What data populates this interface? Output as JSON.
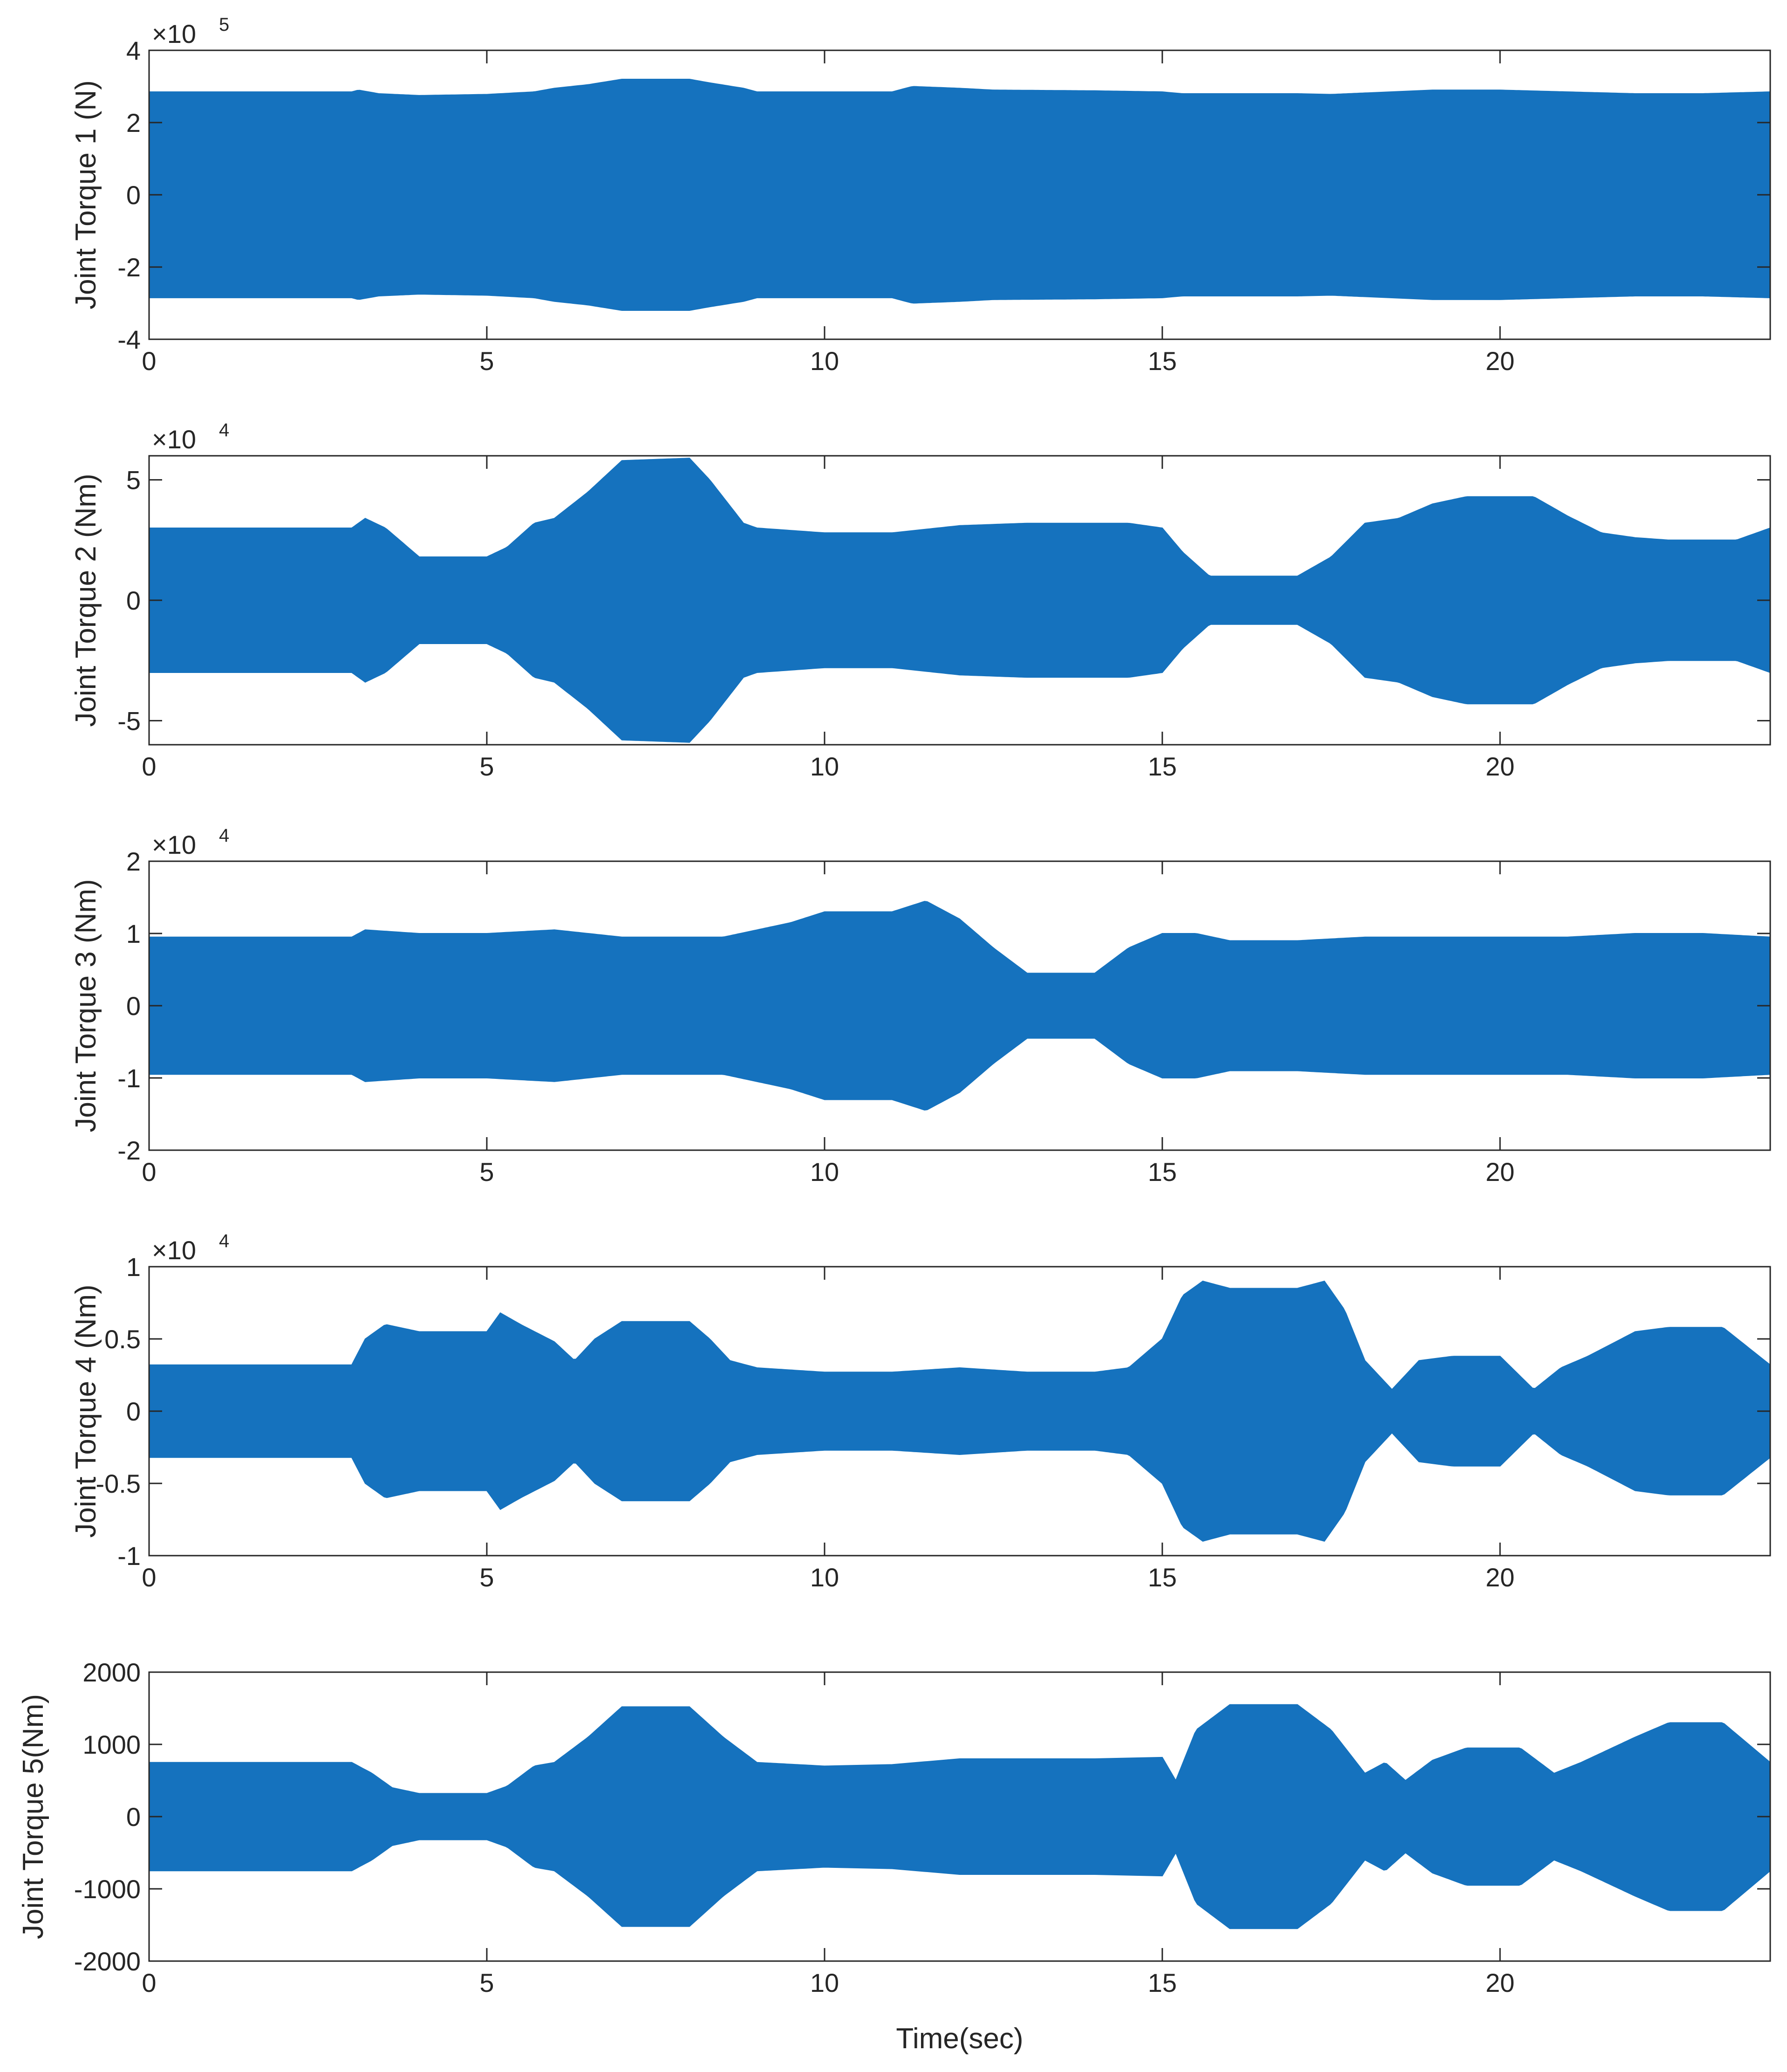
{
  "figure": {
    "x_axis_label": "Time(sec)",
    "line_color": "#1572BE",
    "axis_color": "#262626"
  },
  "chart_data": [
    {
      "type": "area",
      "ylabel": "Joint Torque 1 (N)",
      "exponent_label": "×10",
      "exponent_power": "5",
      "xlim": [
        0,
        24
      ],
      "ylim": [
        -4,
        4
      ],
      "xticks": [
        0,
        5,
        10,
        15,
        20
      ],
      "yticks": [
        -4,
        -2,
        0,
        2,
        4
      ],
      "series": [
        {
          "envelope_points": [
            [
              0,
              2.85
            ],
            [
              3,
              2.85
            ],
            [
              3.1,
              2.9
            ],
            [
              3.4,
              2.8
            ],
            [
              4,
              2.75
            ],
            [
              5,
              2.78
            ],
            [
              5.7,
              2.85
            ],
            [
              6,
              2.95
            ],
            [
              6.5,
              3.05
            ],
            [
              7,
              3.2
            ],
            [
              8,
              3.2
            ],
            [
              8.3,
              3.1
            ],
            [
              8.8,
              2.95
            ],
            [
              9,
              2.85
            ],
            [
              10,
              2.85
            ],
            [
              11,
              2.85
            ],
            [
              11.3,
              3.0
            ],
            [
              12,
              2.95
            ],
            [
              12.5,
              2.9
            ],
            [
              14,
              2.88
            ],
            [
              15,
              2.85
            ],
            [
              15.3,
              2.8
            ],
            [
              16,
              2.8
            ],
            [
              17,
              2.8
            ],
            [
              17.5,
              2.78
            ],
            [
              18,
              2.82
            ],
            [
              19,
              2.9
            ],
            [
              20,
              2.9
            ],
            [
              21,
              2.85
            ],
            [
              22,
              2.8
            ],
            [
              23,
              2.8
            ],
            [
              24,
              2.85
            ]
          ]
        }
      ]
    },
    {
      "type": "area",
      "ylabel": "Joint Torque 2 (Nm)",
      "exponent_label": "×10",
      "exponent_power": "4",
      "xlim": [
        0,
        24
      ],
      "ylim": [
        -6,
        6
      ],
      "xticks": [
        0,
        5,
        10,
        15,
        20
      ],
      "yticks": [
        -5,
        0,
        5
      ],
      "series": [
        {
          "envelope_points": [
            [
              0,
              3.0
            ],
            [
              3,
              3.0
            ],
            [
              3.2,
              3.4
            ],
            [
              3.5,
              3.0
            ],
            [
              4,
              1.8
            ],
            [
              5,
              1.8
            ],
            [
              5.3,
              2.2
            ],
            [
              5.7,
              3.2
            ],
            [
              6,
              3.4
            ],
            [
              6.5,
              4.5
            ],
            [
              7,
              5.8
            ],
            [
              8,
              5.9
            ],
            [
              8.3,
              5.0
            ],
            [
              8.8,
              3.2
            ],
            [
              9,
              3.0
            ],
            [
              10,
              2.8
            ],
            [
              11,
              2.8
            ],
            [
              12,
              3.1
            ],
            [
              13,
              3.2
            ],
            [
              14.5,
              3.2
            ],
            [
              15,
              3.0
            ],
            [
              15.3,
              2.0
            ],
            [
              15.7,
              1.0
            ],
            [
              17,
              1.0
            ],
            [
              17.5,
              1.8
            ],
            [
              18,
              3.2
            ],
            [
              18.5,
              3.4
            ],
            [
              19,
              4.0
            ],
            [
              19.5,
              4.3
            ],
            [
              20.5,
              4.3
            ],
            [
              21,
              3.5
            ],
            [
              21.5,
              2.8
            ],
            [
              22,
              2.6
            ],
            [
              22.5,
              2.5
            ],
            [
              23.5,
              2.5
            ],
            [
              24,
              3.0
            ]
          ]
        }
      ]
    },
    {
      "type": "area",
      "ylabel": "Joint Torque 3 (Nm)",
      "exponent_label": "×10",
      "exponent_power": "4",
      "xlim": [
        0,
        24
      ],
      "ylim": [
        -2,
        2
      ],
      "xticks": [
        0,
        5,
        10,
        15,
        20
      ],
      "yticks": [
        -2,
        -1,
        0,
        1,
        2
      ],
      "series": [
        {
          "envelope_points": [
            [
              0,
              0.95
            ],
            [
              3,
              0.95
            ],
            [
              3.2,
              1.05
            ],
            [
              4,
              1.0
            ],
            [
              5,
              1.0
            ],
            [
              6,
              1.05
            ],
            [
              7,
              0.95
            ],
            [
              8.5,
              0.95
            ],
            [
              9,
              1.05
            ],
            [
              9.5,
              1.15
            ],
            [
              10,
              1.3
            ],
            [
              11,
              1.3
            ],
            [
              11.5,
              1.45
            ],
            [
              12,
              1.2
            ],
            [
              12.5,
              0.8
            ],
            [
              13,
              0.45
            ],
            [
              14,
              0.45
            ],
            [
              14.5,
              0.8
            ],
            [
              15,
              1.0
            ],
            [
              15.5,
              1.0
            ],
            [
              16,
              0.9
            ],
            [
              17,
              0.9
            ],
            [
              18,
              0.95
            ],
            [
              19,
              0.95
            ],
            [
              21,
              0.95
            ],
            [
              22,
              1.0
            ],
            [
              23,
              1.0
            ],
            [
              24,
              0.95
            ]
          ]
        }
      ]
    },
    {
      "type": "area",
      "ylabel": "Joint Torque 4 (Nm)",
      "exponent_label": "×10",
      "exponent_power": "4",
      "xlim": [
        0,
        24
      ],
      "ylim": [
        -1,
        1
      ],
      "xticks": [
        0,
        5,
        10,
        15,
        20
      ],
      "yticks": [
        -1,
        -0.5,
        0,
        0.5,
        1
      ],
      "series": [
        {
          "envelope_points": [
            [
              0,
              0.32
            ],
            [
              3,
              0.32
            ],
            [
              3.2,
              0.5
            ],
            [
              3.5,
              0.6
            ],
            [
              4,
              0.55
            ],
            [
              5,
              0.55
            ],
            [
              5.2,
              0.68
            ],
            [
              5.5,
              0.6
            ],
            [
              6,
              0.48
            ],
            [
              6.3,
              0.35
            ],
            [
              6.6,
              0.5
            ],
            [
              7,
              0.62
            ],
            [
              8,
              0.62
            ],
            [
              8.3,
              0.5
            ],
            [
              8.6,
              0.35
            ],
            [
              9,
              0.3
            ],
            [
              10,
              0.27
            ],
            [
              11,
              0.27
            ],
            [
              12,
              0.3
            ],
            [
              13,
              0.27
            ],
            [
              14,
              0.27
            ],
            [
              14.5,
              0.3
            ],
            [
              15,
              0.5
            ],
            [
              15.3,
              0.8
            ],
            [
              15.6,
              0.9
            ],
            [
              16,
              0.85
            ],
            [
              17,
              0.85
            ],
            [
              17.4,
              0.9
            ],
            [
              17.7,
              0.7
            ],
            [
              18,
              0.35
            ],
            [
              18.4,
              0.15
            ],
            [
              18.8,
              0.35
            ],
            [
              19.3,
              0.38
            ],
            [
              20,
              0.38
            ],
            [
              20.5,
              0.15
            ],
            [
              20.9,
              0.3
            ],
            [
              21.3,
              0.38
            ],
            [
              22,
              0.55
            ],
            [
              22.5,
              0.58
            ],
            [
              23.3,
              0.58
            ],
            [
              24,
              0.32
            ]
          ]
        }
      ]
    },
    {
      "type": "area",
      "ylabel": "Joint Torque 5(Nm)",
      "exponent_label": "",
      "exponent_power": "",
      "xlim": [
        0,
        24
      ],
      "ylim": [
        -2000,
        2000
      ],
      "xticks": [
        0,
        5,
        10,
        15,
        20
      ],
      "yticks": [
        -2000,
        -1000,
        0,
        1000,
        2000
      ],
      "series": [
        {
          "envelope_points": [
            [
              0,
              750
            ],
            [
              3,
              750
            ],
            [
              3.3,
              600
            ],
            [
              3.6,
              400
            ],
            [
              4,
              320
            ],
            [
              5,
              320
            ],
            [
              5.3,
              420
            ],
            [
              5.7,
              700
            ],
            [
              6,
              750
            ],
            [
              6.5,
              1100
            ],
            [
              7,
              1520
            ],
            [
              8,
              1520
            ],
            [
              8.5,
              1100
            ],
            [
              9,
              750
            ],
            [
              10,
              700
            ],
            [
              11,
              720
            ],
            [
              12,
              800
            ],
            [
              13,
              800
            ],
            [
              14,
              800
            ],
            [
              15,
              820
            ],
            [
              15.2,
              500
            ],
            [
              15.5,
              1200
            ],
            [
              16,
              1550
            ],
            [
              17,
              1550
            ],
            [
              17.5,
              1200
            ],
            [
              18,
              600
            ],
            [
              18.3,
              750
            ],
            [
              18.6,
              500
            ],
            [
              19,
              780
            ],
            [
              19.5,
              950
            ],
            [
              20.3,
              950
            ],
            [
              20.8,
              600
            ],
            [
              21.2,
              750
            ],
            [
              22,
              1100
            ],
            [
              22.5,
              1300
            ],
            [
              23.3,
              1300
            ],
            [
              24,
              750
            ]
          ]
        }
      ]
    }
  ]
}
